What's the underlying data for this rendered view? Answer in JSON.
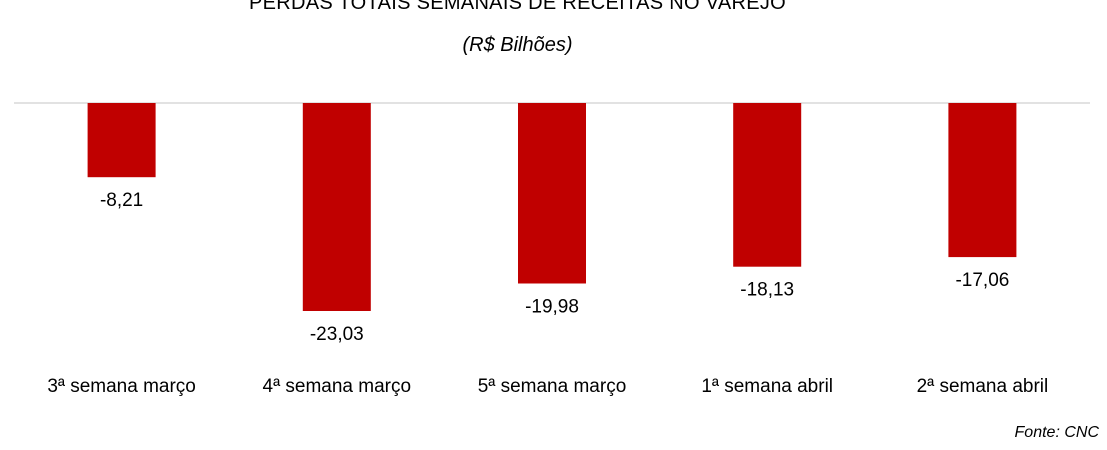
{
  "chart_data": {
    "type": "bar",
    "title": "PERDAS TOTAIS SEMANAIS DE RECEITAS NO VAREJO",
    "subtitle": "(R$ Bilhões)",
    "categories": [
      "3ª semana março",
      "4ª semana março",
      "5ª semana março",
      "1ª semana abril",
      "2ª semana abril"
    ],
    "series": [
      {
        "values": [
          -8.21,
          -23.03,
          -19.98,
          -18.13,
          -17.06
        ],
        "labels": [
          "-8,21",
          "-23,03",
          "-19,98",
          "-18,13",
          "-17,06"
        ],
        "color": "#c00000"
      }
    ],
    "ylim": [
      -23.03,
      0
    ],
    "grid": false,
    "legend": "none",
    "source": "Fonte: CNC"
  }
}
